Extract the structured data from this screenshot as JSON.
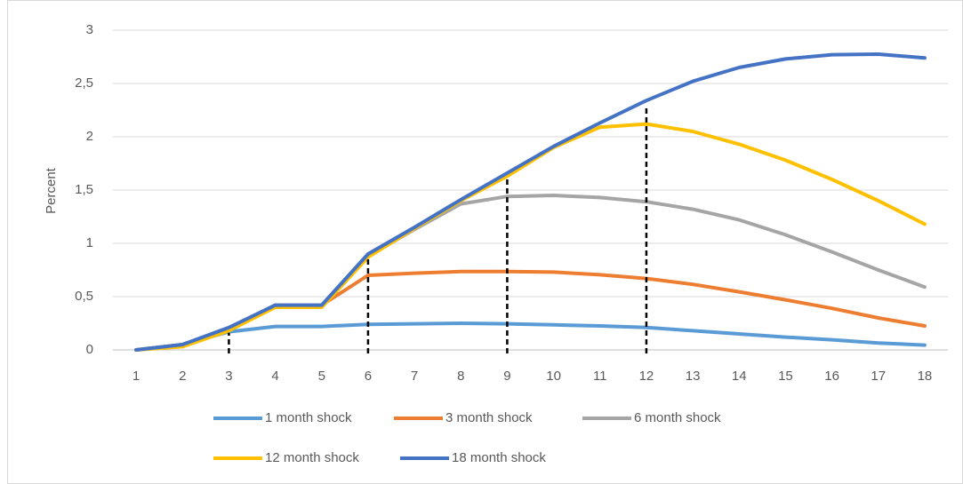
{
  "chart_data": {
    "type": "line",
    "y_label": "Percent",
    "x": [
      1,
      2,
      3,
      4,
      5,
      6,
      7,
      8,
      9,
      10,
      11,
      12,
      13,
      14,
      15,
      16,
      17,
      18
    ],
    "xlim": [
      0.5,
      18.5
    ],
    "xticks": [
      1,
      2,
      3,
      4,
      5,
      6,
      7,
      8,
      9,
      10,
      11,
      12,
      13,
      14,
      15,
      16,
      17,
      18
    ],
    "ylim": [
      0,
      3
    ],
    "yticks": [
      0,
      {
        "value": 0.5,
        "label": "0,5"
      },
      1,
      {
        "value": 1.5,
        "label": "1,5"
      },
      2,
      {
        "value": 2.5,
        "label": "2,5"
      },
      3
    ],
    "grid": true,
    "series": [
      {
        "name": "1 month shock",
        "color": "#5b9bd5",
        "values": [
          0,
          0.05,
          0.17,
          0.22,
          0.22,
          0.24,
          0.245,
          0.25,
          0.245,
          0.235,
          0.225,
          0.21,
          0.18,
          0.15,
          0.12,
          0.095,
          0.065,
          0.045
        ]
      },
      {
        "name": "3 month shock",
        "color": "#ed7d31",
        "values": [
          0,
          0.05,
          0.2,
          0.42,
          0.42,
          0.7,
          0.72,
          0.735,
          0.735,
          0.73,
          0.705,
          0.67,
          0.615,
          0.545,
          0.47,
          0.39,
          0.3,
          0.225
        ]
      },
      {
        "name": "6 month shock",
        "color": "#a5a5a5",
        "values": [
          0,
          0.05,
          0.2,
          0.42,
          0.42,
          0.88,
          1.13,
          1.37,
          1.44,
          1.45,
          1.43,
          1.39,
          1.32,
          1.22,
          1.08,
          0.92,
          0.75,
          0.59
        ]
      },
      {
        "name": "12 month shock",
        "color": "#ffc000",
        "values": [
          0,
          0.03,
          0.18,
          0.4,
          0.4,
          0.87,
          1.14,
          1.4,
          1.63,
          1.9,
          2.09,
          2.12,
          2.05,
          1.93,
          1.78,
          1.6,
          1.4,
          1.18
        ]
      },
      {
        "name": "18 month shock",
        "color": "#4472c4",
        "values": [
          0,
          0.05,
          0.21,
          0.42,
          0.42,
          0.9,
          1.15,
          1.41,
          1.66,
          1.91,
          2.13,
          2.34,
          2.52,
          2.65,
          2.73,
          2.77,
          2.775,
          2.74
        ]
      }
    ],
    "reference_lines": [
      {
        "x": 3,
        "y": 0.16
      },
      {
        "x": 6,
        "y": 0.87
      },
      {
        "x": 9,
        "y": 1.6
      },
      {
        "x": 12,
        "y": 2.3
      }
    ],
    "reference_color": "#000000"
  }
}
